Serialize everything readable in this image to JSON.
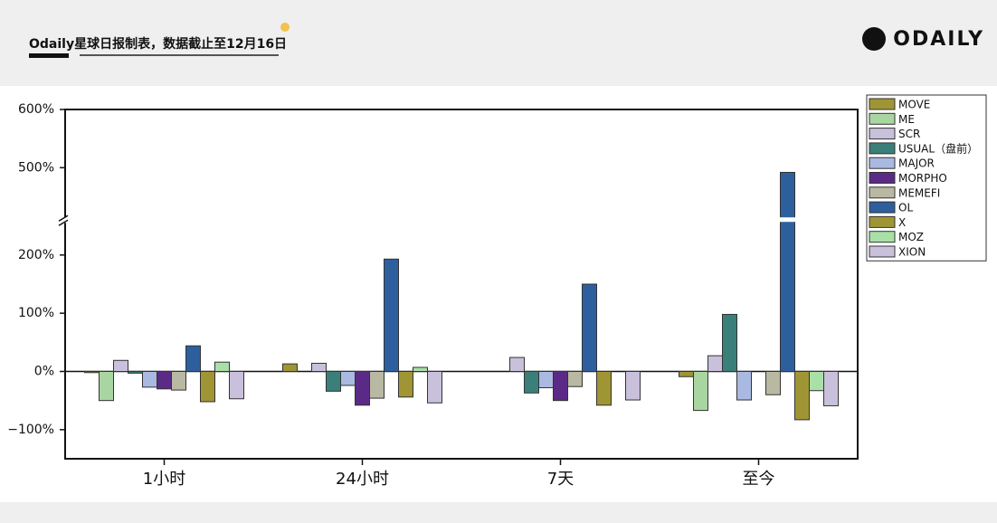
{
  "header": {
    "title": "Odaily星球日报制表，数据截止至12月16日",
    "logo": "ODAILY"
  },
  "chart_data": {
    "type": "bar",
    "categories": [
      "1小时",
      "24小时",
      "7天",
      "至今"
    ],
    "series": [
      {
        "name": "MOVE",
        "color": "#a09535",
        "values": [
          -2,
          13,
          0,
          -9
        ]
      },
      {
        "name": "ME",
        "color": "#a9d6a0",
        "values": [
          -50,
          0,
          0,
          -67
        ]
      },
      {
        "name": "SCR",
        "color": "#c9c0dc",
        "values": [
          19,
          14,
          24,
          27
        ]
      },
      {
        "name": "USUAL（盘前）",
        "color": "#3b7f7a",
        "values": [
          -3,
          -34,
          -37,
          98
        ]
      },
      {
        "name": "MAJOR",
        "color": "#a9b9e2",
        "values": [
          -27,
          -24,
          -28,
          -49
        ]
      },
      {
        "name": "MORPHO",
        "color": "#5b2a86",
        "values": [
          -30,
          -58,
          -50,
          0
        ]
      },
      {
        "name": "MEMEFI",
        "color": "#b9b8a2",
        "values": [
          -32,
          -46,
          -26,
          -40
        ]
      },
      {
        "name": "OL",
        "color": "#2d5f9e",
        "values": [
          44,
          193,
          150,
          492
        ]
      },
      {
        "name": "X",
        "color": "#a09535",
        "values": [
          -52,
          -44,
          -58,
          -83
        ]
      },
      {
        "name": "MOZ",
        "color": "#a9e0a8",
        "values": [
          16,
          7,
          0,
          -33
        ]
      },
      {
        "name": "XION",
        "color": "#c9c0dc",
        "values": [
          -47,
          -54,
          -49,
          -59
        ]
      }
    ],
    "ylim": [
      -150,
      600
    ],
    "axis_break": [
      260,
      410
    ],
    "yticks": [
      {
        "value": -100,
        "label": "−100%"
      },
      {
        "value": 0,
        "label": "0%"
      },
      {
        "value": 100,
        "label": "100%"
      },
      {
        "value": 200,
        "label": "200%"
      },
      {
        "value": 500,
        "label": "500%"
      },
      {
        "value": 600,
        "label": "600%"
      }
    ],
    "legend": "outside-top-right"
  }
}
